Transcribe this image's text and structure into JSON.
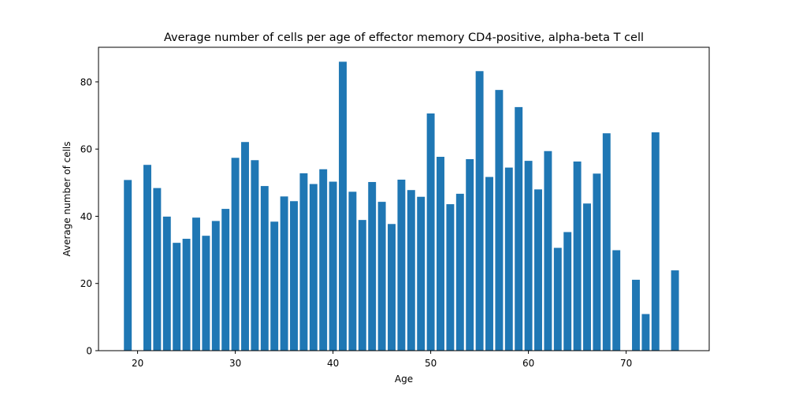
{
  "chart_data": {
    "type": "bar",
    "title": "Average number of cells per age of effector memory CD4-positive, alpha-beta T cell",
    "xlabel": "Age",
    "ylabel": "Average number of cells",
    "xlim": [
      16,
      78.5
    ],
    "ylim": [
      0,
      90.3
    ],
    "xticks": [
      20,
      30,
      40,
      50,
      60,
      70
    ],
    "yticks": [
      0,
      20,
      40,
      60,
      80
    ],
    "bar_color": "#1f77b4",
    "grid": false,
    "legend": "none",
    "x": [
      19,
      21,
      22,
      23,
      24,
      25,
      26,
      27,
      28,
      29,
      30,
      31,
      32,
      33,
      34,
      35,
      36,
      37,
      38,
      39,
      40,
      41,
      42,
      43,
      44,
      45,
      46,
      47,
      48,
      49,
      50,
      51,
      52,
      53,
      54,
      55,
      56,
      57,
      58,
      59,
      60,
      61,
      62,
      63,
      64,
      65,
      66,
      67,
      68,
      69,
      71,
      72,
      73,
      75
    ],
    "values": [
      50.8,
      55.3,
      48.4,
      39.9,
      32.1,
      33.3,
      39.6,
      34.2,
      38.6,
      42.2,
      57.4,
      62.1,
      56.7,
      49.0,
      38.4,
      45.9,
      44.5,
      52.8,
      49.6,
      54.0,
      50.3,
      86.0,
      47.3,
      38.9,
      50.2,
      44.3,
      37.7,
      50.9,
      47.8,
      45.8,
      70.6,
      57.7,
      43.6,
      46.7,
      57.0,
      83.2,
      51.7,
      77.6,
      54.5,
      72.5,
      56.5,
      48.0,
      59.4,
      30.6,
      35.3,
      56.3,
      43.8,
      52.7,
      64.7,
      29.9,
      21.1,
      10.9,
      65.0,
      23.9
    ]
  }
}
